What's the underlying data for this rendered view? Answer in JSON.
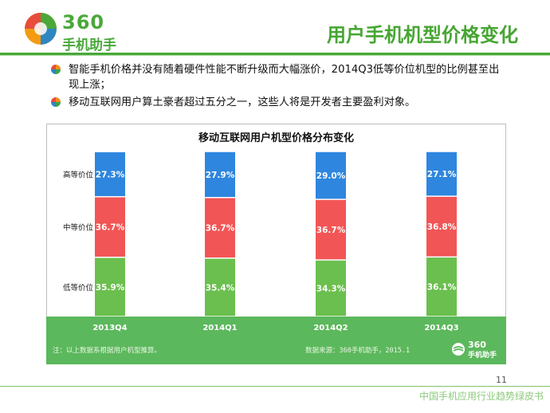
{
  "header": {
    "logo_number": "360",
    "logo_name": "手机助手",
    "title": "用户手机机型价格变化"
  },
  "bullets": [
    "智能手机价格并没有随着硬件性能不断升级而大幅涨价，2014Q3低等价位机型的比例甚至出现上涨；",
    "移动互联网用户算土豪者超过五分之一，这些人将是开发者主要盈利对象。"
  ],
  "colors": {
    "brand_green": "#4aa83a",
    "high": "#2e86de",
    "mid": "#f25555",
    "low": "#6bbf4e",
    "band": "#5cb85c"
  },
  "chart_data": {
    "type": "bar",
    "stacked": true,
    "title": "移动互联网用户机型价格分布变化",
    "categories": [
      "2013Q4",
      "2014Q1",
      "2014Q2",
      "2014Q3"
    ],
    "series": [
      {
        "name": "低等价位",
        "values": [
          35.9,
          35.4,
          34.3,
          36.1
        ],
        "labels": [
          "35.9%",
          "35.4%",
          "34.3%",
          "36.1%"
        ]
      },
      {
        "name": "中等价位",
        "values": [
          36.7,
          36.7,
          36.7,
          36.8
        ],
        "labels": [
          "36.7%",
          "36.7%",
          "36.7%",
          "36.8%"
        ]
      },
      {
        "name": "高等价位",
        "values": [
          27.3,
          27.9,
          29.0,
          27.1
        ],
        "labels": [
          "27.3%",
          "27.9%",
          "29.0%",
          "27.1%"
        ]
      }
    ],
    "ylim": [
      0,
      100
    ],
    "grid": false,
    "legend": "left"
  },
  "footer": {
    "note": "注：以上数据系根据用户机型推算。",
    "source": "数据来源：360手机助手，2015.1",
    "band_logo_number": "360",
    "band_logo_name": "手机助手",
    "page_number": "11",
    "report_name": "中国手机应用行业趋势绿皮书"
  }
}
